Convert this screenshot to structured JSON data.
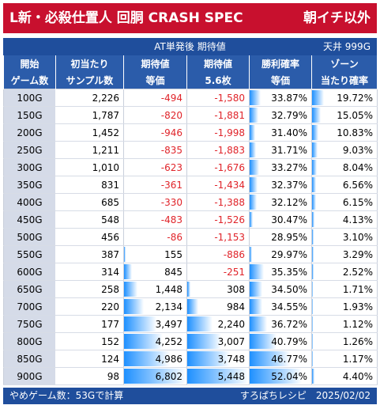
{
  "header": {
    "title": "L新・必殺仕置人 回胴 CRASH SPEC",
    "title_right": "朝イチ以外",
    "subtitle": "AT単発後 期待値",
    "ceiling": "天井 999G"
  },
  "columns": [
    {
      "line1": "開始",
      "line2": "ゲーム数"
    },
    {
      "line1": "初当たり",
      "line2": "サンプル数"
    },
    {
      "line1": "期待値",
      "line2": "等価"
    },
    {
      "line1": "期待値",
      "line2": "5.6枚"
    },
    {
      "line1": "勝利確率",
      "line2": "等価"
    },
    {
      "line1": "ゾーン",
      "line2": "当たり確率"
    }
  ],
  "chart_data": {
    "type": "table",
    "rows": [
      {
        "game": "100G",
        "samples": "2,226",
        "ev_equal": "-494",
        "ev_56": "-1,580",
        "win_rate": "33.87%",
        "zone_rate": "19.72%"
      },
      {
        "game": "150G",
        "samples": "1,787",
        "ev_equal": "-820",
        "ev_56": "-1,881",
        "win_rate": "32.79%",
        "zone_rate": "15.05%"
      },
      {
        "game": "200G",
        "samples": "1,452",
        "ev_equal": "-946",
        "ev_56": "-1,998",
        "win_rate": "31.40%",
        "zone_rate": "10.83%"
      },
      {
        "game": "250G",
        "samples": "1,211",
        "ev_equal": "-835",
        "ev_56": "-1,883",
        "win_rate": "31.71%",
        "zone_rate": "9.03%"
      },
      {
        "game": "300G",
        "samples": "1,010",
        "ev_equal": "-623",
        "ev_56": "-1,676",
        "win_rate": "33.27%",
        "zone_rate": "8.04%"
      },
      {
        "game": "350G",
        "samples": "831",
        "ev_equal": "-361",
        "ev_56": "-1,434",
        "win_rate": "32.37%",
        "zone_rate": "6.56%"
      },
      {
        "game": "400G",
        "samples": "685",
        "ev_equal": "-330",
        "ev_56": "-1,388",
        "win_rate": "32.12%",
        "zone_rate": "6.15%"
      },
      {
        "game": "450G",
        "samples": "548",
        "ev_equal": "-483",
        "ev_56": "-1,526",
        "win_rate": "30.47%",
        "zone_rate": "4.13%"
      },
      {
        "game": "500G",
        "samples": "456",
        "ev_equal": "-86",
        "ev_56": "-1,153",
        "win_rate": "28.95%",
        "zone_rate": "3.10%"
      },
      {
        "game": "550G",
        "samples": "387",
        "ev_equal": "155",
        "ev_56": "-886",
        "win_rate": "29.97%",
        "zone_rate": "3.29%"
      },
      {
        "game": "600G",
        "samples": "314",
        "ev_equal": "845",
        "ev_56": "-251",
        "win_rate": "35.35%",
        "zone_rate": "2.52%"
      },
      {
        "game": "650G",
        "samples": "258",
        "ev_equal": "1,448",
        "ev_56": "308",
        "win_rate": "34.50%",
        "zone_rate": "1.71%"
      },
      {
        "game": "700G",
        "samples": "220",
        "ev_equal": "2,134",
        "ev_56": "984",
        "win_rate": "34.55%",
        "zone_rate": "1.93%"
      },
      {
        "game": "750G",
        "samples": "177",
        "ev_equal": "3,497",
        "ev_56": "2,240",
        "win_rate": "36.72%",
        "zone_rate": "1.12%"
      },
      {
        "game": "800G",
        "samples": "152",
        "ev_equal": "4,252",
        "ev_56": "3,007",
        "win_rate": "40.79%",
        "zone_rate": "1.26%"
      },
      {
        "game": "850G",
        "samples": "124",
        "ev_equal": "4,986",
        "ev_56": "3,748",
        "win_rate": "46.77%",
        "zone_rate": "1.17%"
      },
      {
        "game": "900G",
        "samples": "98",
        "ev_equal": "6,802",
        "ev_56": "5,448",
        "win_rate": "52.04%",
        "zone_rate": "4.40%"
      }
    ]
  },
  "footer": {
    "left": "やめゲーム数：53Gで計算",
    "right": "すろぱちレシピ　2025/02/02"
  },
  "colors": {
    "title_bg": "#c8102e",
    "header_bg": "#2b5caa",
    "negative": "#e0242a",
    "bar": "#1e90ff"
  }
}
